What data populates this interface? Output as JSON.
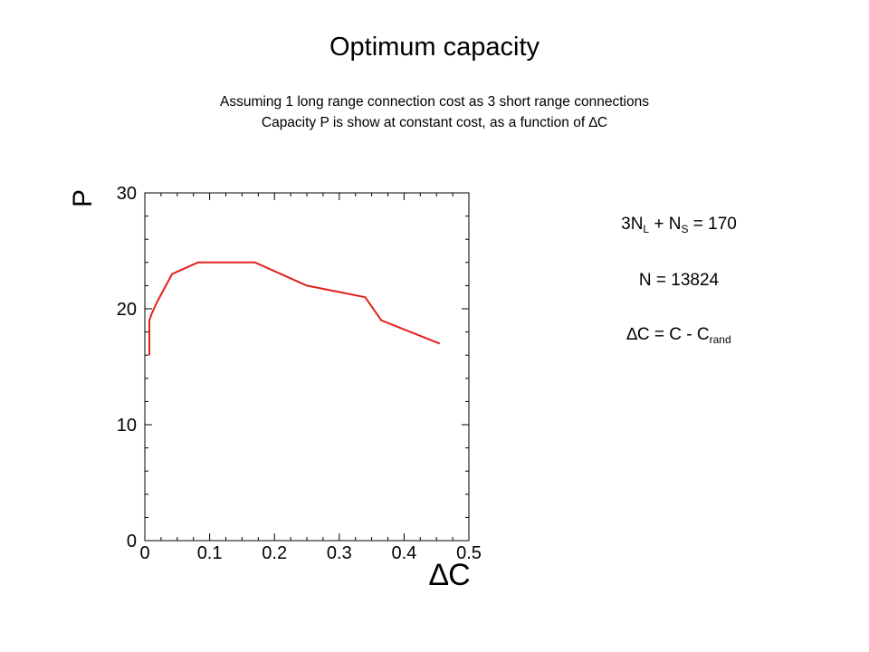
{
  "chart_data": {
    "type": "line",
    "title": "Optimum capacity",
    "subtitle_lines": [
      "Assuming 1 long range connection cost as 3 short range connections",
      "Capacity P is show at constant cost, as a function of ∆C"
    ],
    "xlabel": "∆C",
    "ylabel": "P",
    "xlim": [
      0,
      0.5
    ],
    "ylim": [
      0,
      30
    ],
    "x_ticks": [
      0,
      0.1,
      0.2,
      0.3,
      0.4,
      0.5
    ],
    "x_tick_labels": [
      "0",
      "0.1",
      "0.2",
      "0.3",
      "0.4",
      "0.5"
    ],
    "y_ticks": [
      0,
      10,
      20,
      30
    ],
    "y_tick_labels": [
      "0",
      "10",
      "20",
      "30"
    ],
    "grid": false,
    "series_color": "#e0211a",
    "series": [
      {
        "x": [
          0.007,
          0.007,
          0.01,
          0.018,
          0.042,
          0.082,
          0.09,
          0.17,
          0.25,
          0.34,
          0.365,
          0.455
        ],
        "y": [
          16.0,
          19.0,
          19.5,
          20.5,
          23.0,
          24.0,
          24.0,
          24.0,
          22.0,
          21.0,
          19.0,
          17.0
        ]
      }
    ]
  },
  "annotations": {
    "eq1": {
      "a": "3N",
      "a_sub": "L",
      "b": " + N",
      "b_sub": "S",
      "c": " = 170"
    },
    "eq2": {
      "text": "N = 13824"
    },
    "eq3": {
      "a": "∆C = C - C",
      "a_sub": "rand"
    }
  }
}
